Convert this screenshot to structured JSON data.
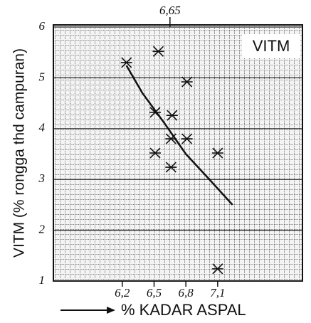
{
  "chart_data": {
    "type": "scatter",
    "title": "VITM",
    "y_label": "VITM (% rongga thd campuran)",
    "x_label": "% KADAR ASPAL",
    "top_annotation": {
      "value": 6.65,
      "label": "6,65"
    },
    "xlim": [
      5.55,
      7.9
    ],
    "ylim": [
      1,
      6
    ],
    "xticks": [
      {
        "value": 6.2,
        "label": "6,2"
      },
      {
        "value": 6.5,
        "label": "6,5"
      },
      {
        "value": 6.8,
        "label": "6,8"
      },
      {
        "value": 7.1,
        "label": "7,1"
      }
    ],
    "yticks": [
      1,
      2,
      3,
      4,
      5,
      6
    ],
    "grid": true,
    "series": [
      {
        "type": "scatter",
        "color": "#111111",
        "x": [
          6.24,
          6.54,
          6.81,
          6.51,
          6.67,
          6.81,
          6.66,
          6.51,
          6.66,
          7.1,
          7.1
        ],
        "values": [
          5.3,
          5.52,
          4.92,
          4.32,
          4.26,
          3.8,
          3.8,
          3.52,
          3.24,
          3.52,
          1.24
        ]
      },
      {
        "type": "line",
        "color": "#111111",
        "x": [
          6.24,
          6.39,
          6.6,
          6.8,
          7.0,
          7.24
        ],
        "values": [
          5.24,
          4.7,
          4.1,
          3.5,
          3.05,
          2.5
        ]
      }
    ]
  }
}
